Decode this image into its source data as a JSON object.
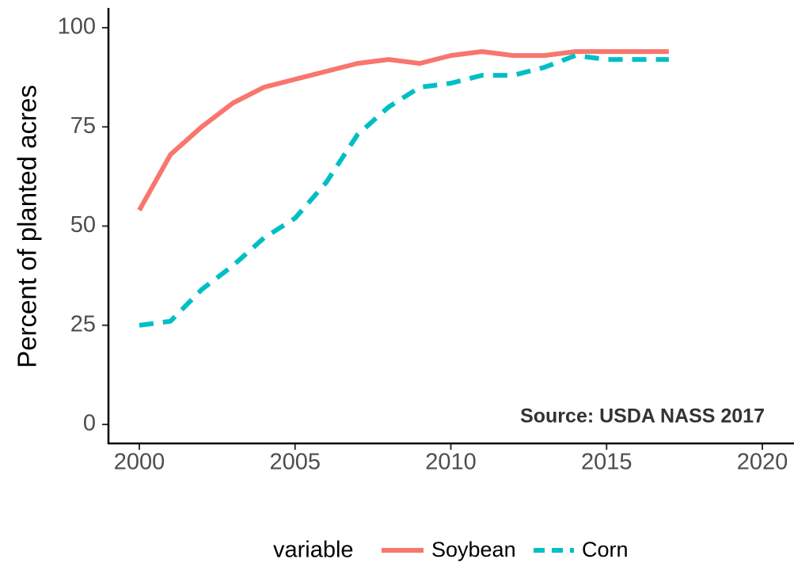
{
  "chart_data": {
    "type": "line",
    "title": "",
    "xlabel": "",
    "ylabel": "Percent of planted acres",
    "xlim": [
      2000,
      2020
    ],
    "ylim": [
      0,
      100
    ],
    "x_ticks": [
      2000,
      2005,
      2010,
      2015,
      2020
    ],
    "y_ticks": [
      0,
      25,
      50,
      75,
      100
    ],
    "grid": false,
    "legend_title": "variable",
    "legend_position": "bottom",
    "annotation": "Source: USDA NASS 2017",
    "series": [
      {
        "name": "Soybean",
        "color": "#f8766d",
        "line_style": "solid",
        "x": [
          2000,
          2001,
          2002,
          2003,
          2004,
          2005,
          2006,
          2007,
          2008,
          2009,
          2010,
          2011,
          2012,
          2013,
          2014,
          2015,
          2016,
          2017
        ],
        "y": [
          54,
          68,
          75,
          81,
          85,
          87,
          89,
          91,
          92,
          91,
          93,
          94,
          93,
          93,
          94,
          94,
          94,
          94
        ]
      },
      {
        "name": "Corn",
        "color": "#00bfc4",
        "line_style": "dashed",
        "x": [
          2000,
          2001,
          2002,
          2003,
          2004,
          2005,
          2006,
          2007,
          2008,
          2009,
          2010,
          2011,
          2012,
          2013,
          2014,
          2015,
          2016,
          2017
        ],
        "y": [
          25,
          26,
          34,
          40,
          47,
          52,
          61,
          73,
          80,
          85,
          86,
          88,
          88,
          90,
          93,
          92,
          92,
          92
        ]
      }
    ]
  }
}
